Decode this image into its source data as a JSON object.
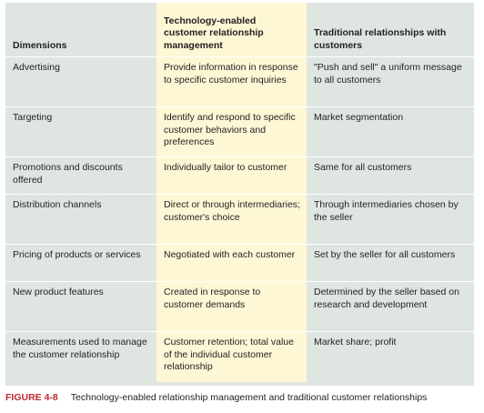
{
  "table": {
    "headers": [
      "Dimensions",
      "Technology-enabled customer relationship management",
      "Traditional relationships with customers"
    ],
    "rows": [
      [
        "Advertising",
        "Provide information in response to specific customer inquiries",
        "\"Push and sell\" a uniform message to all customers"
      ],
      [
        "Targeting",
        "Identify and respond to specific customer behaviors and preferences",
        "Market segmentation"
      ],
      [
        "Promotions and discounts offered",
        "Individually tailor to customer",
        "Same for all customers"
      ],
      [
        "Distribution channels",
        "Direct or through intermediaries; customer's choice",
        "Through intermediaries chosen by the seller"
      ],
      [
        "Pricing of products or services",
        "Negotiated with each customer",
        "Set by the seller for all customers"
      ],
      [
        "New product features",
        "Created in response to customer demands",
        "Determined by the seller based on research and development"
      ],
      [
        "Measurements used to manage the customer relationship",
        "Customer retention; total value of the individual customer relationship",
        "Market share; profit"
      ]
    ]
  },
  "caption": {
    "label": "FIGURE 4-8",
    "text": "Technology-enabled relationship management and traditional customer relationships"
  },
  "colors": {
    "panel": "#dfe5e1",
    "highlight_column": "#fdf7d6",
    "figure_label": "#c0282d"
  }
}
